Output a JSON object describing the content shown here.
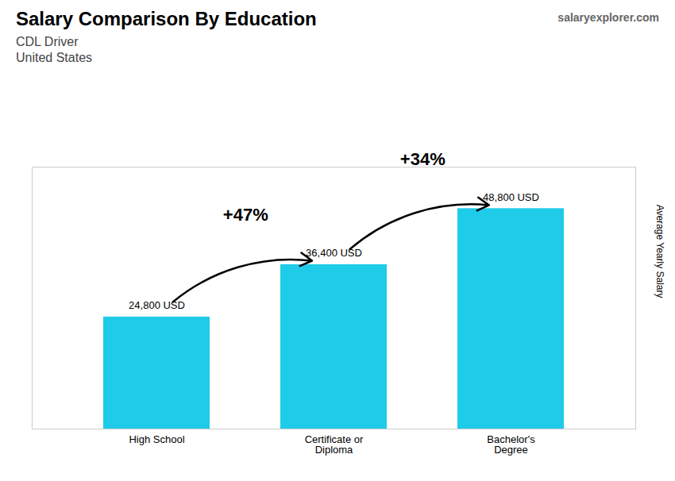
{
  "chart_data": {
    "type": "bar",
    "title": "Salary Comparison By Education",
    "subtitle": [
      "CDL Driver",
      "United States"
    ],
    "source": "salaryexplorer.com",
    "categories": [
      "High School",
      "Certificate or\nDiploma",
      "Bachelor's\nDegree"
    ],
    "values": [
      24800,
      36400,
      48800
    ],
    "value_labels": [
      "24,800 USD",
      "36,400 USD",
      "48,800 USD"
    ],
    "data_labels": true,
    "color": "#1ECBE8",
    "ylabel": "Average Yearly Salary",
    "ylim": [
      0,
      58000
    ],
    "tick_labels": "x",
    "grid": false,
    "annotations": [
      {
        "text": "+47%",
        "from": "High School",
        "to": "Certificate or\nDiploma"
      },
      {
        "text": "+34%",
        "from": "Certificate or\nDiploma",
        "to": "Bachelor's\nDegree"
      }
    ]
  }
}
